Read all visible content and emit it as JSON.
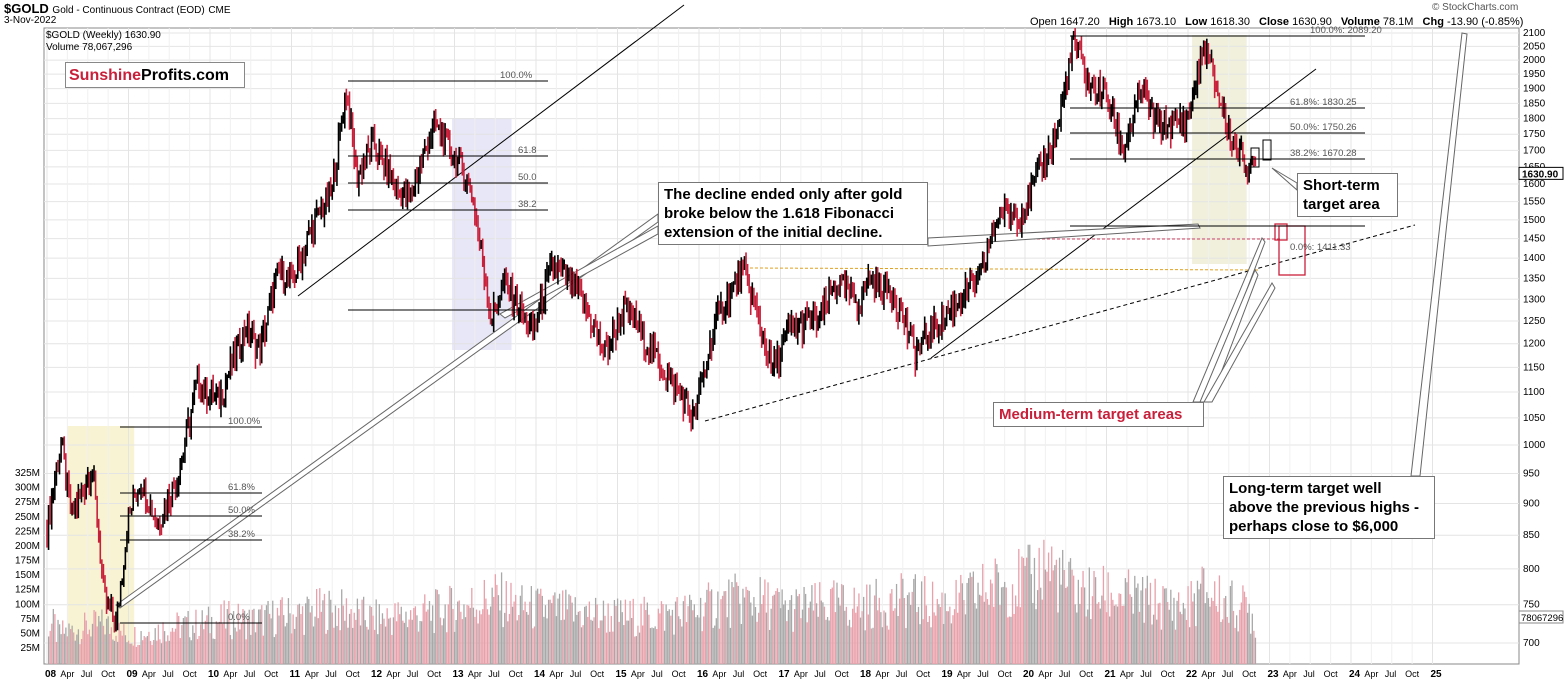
{
  "header": {
    "symbol": "$GOLD",
    "description": "Gold - Continuous Contract (EOD)",
    "exchange": "CME",
    "date": "3-Nov-2022",
    "open_label": "Open",
    "open": "1647.20",
    "high_label": "High",
    "high": "1673.10",
    "low_label": "Low",
    "low": "1618.30",
    "close_label": "Close",
    "close": "1630.90",
    "volume_label": "Volume",
    "volume": "78.1M",
    "chg_label": "Chg",
    "chg": "-13.90 (-0.85%)",
    "copyright": "© StockCharts.com"
  },
  "legend": {
    "price": "$GOLD (Weekly) 1630.90",
    "volume": "Volume 78,067,296"
  },
  "brand": {
    "part1": "Sunshine",
    "part2": "Profits.com"
  },
  "notes": {
    "decline": "The decline ended only after gold broke below the 1.618 Fibonacci extension of the initial decline.",
    "short_term": "Short-term target area",
    "medium_term": "Medium-term target areas",
    "long_term": "Long-term target well above the previous highs - perhaps close to $6,000"
  },
  "chart_data": {
    "type": "line",
    "title": "$GOLD (Weekly)",
    "xlabel": "",
    "ylabel": "",
    "yscale": "log",
    "ylim": [
      680,
      2110
    ],
    "price_ticks": [
      700,
      750,
      800,
      850,
      900,
      950,
      1000,
      1050,
      1100,
      1150,
      1200,
      1250,
      1300,
      1350,
      1400,
      1450,
      1500,
      1550,
      1600,
      1650,
      1700,
      1750,
      1800,
      1850,
      1900,
      1950,
      2000,
      2050,
      2100
    ],
    "volume_ticks": [
      "25M",
      "50M",
      "75M",
      "100M",
      "125M",
      "150M",
      "175M",
      "200M",
      "225M",
      "250M",
      "275M",
      "300M",
      "325M"
    ],
    "volume_ticks_values": [
      25,
      50,
      75,
      100,
      125,
      150,
      175,
      200,
      225,
      250,
      275,
      300,
      325
    ],
    "year_labels": [
      "08",
      "09",
      "10",
      "11",
      "12",
      "13",
      "14",
      "15",
      "16",
      "17",
      "18",
      "19",
      "20",
      "21",
      "22",
      "23",
      "24",
      "25"
    ],
    "month_labels": [
      "Apr",
      "Jul",
      "Oct"
    ],
    "last_price_label": "1630.90",
    "last_volume_label": "78067296",
    "price_series": [
      {
        "t": 2008.0,
        "v": 860
      },
      {
        "t": 2008.17,
        "v": 1000
      },
      {
        "t": 2008.3,
        "v": 880
      },
      {
        "t": 2008.55,
        "v": 960
      },
      {
        "t": 2008.7,
        "v": 760
      },
      {
        "t": 2008.85,
        "v": 720
      },
      {
        "t": 2009.0,
        "v": 880
      },
      {
        "t": 2009.15,
        "v": 940
      },
      {
        "t": 2009.35,
        "v": 870
      },
      {
        "t": 2009.6,
        "v": 940
      },
      {
        "t": 2009.85,
        "v": 1120
      },
      {
        "t": 2010.1,
        "v": 1080
      },
      {
        "t": 2010.45,
        "v": 1240
      },
      {
        "t": 2010.6,
        "v": 1180
      },
      {
        "t": 2010.85,
        "v": 1370
      },
      {
        "t": 2011.0,
        "v": 1340
      },
      {
        "t": 2011.3,
        "v": 1500
      },
      {
        "t": 2011.5,
        "v": 1580
      },
      {
        "t": 2011.67,
        "v": 1900
      },
      {
        "t": 2011.8,
        "v": 1620
      },
      {
        "t": 2012.0,
        "v": 1720
      },
      {
        "t": 2012.3,
        "v": 1580
      },
      {
        "t": 2012.45,
        "v": 1560
      },
      {
        "t": 2012.75,
        "v": 1780
      },
      {
        "t": 2013.0,
        "v": 1680
      },
      {
        "t": 2013.2,
        "v": 1590
      },
      {
        "t": 2013.45,
        "v": 1250
      },
      {
        "t": 2013.6,
        "v": 1340
      },
      {
        "t": 2013.8,
        "v": 1280
      },
      {
        "t": 2013.95,
        "v": 1220
      },
      {
        "t": 2014.2,
        "v": 1380
      },
      {
        "t": 2014.5,
        "v": 1320
      },
      {
        "t": 2014.85,
        "v": 1180
      },
      {
        "t": 2015.1,
        "v": 1280
      },
      {
        "t": 2015.4,
        "v": 1190
      },
      {
        "t": 2015.7,
        "v": 1110
      },
      {
        "t": 2015.95,
        "v": 1050
      },
      {
        "t": 2016.2,
        "v": 1250
      },
      {
        "t": 2016.55,
        "v": 1370
      },
      {
        "t": 2016.9,
        "v": 1140
      },
      {
        "t": 2017.1,
        "v": 1230
      },
      {
        "t": 2017.5,
        "v": 1260
      },
      {
        "t": 2017.7,
        "v": 1340
      },
      {
        "t": 2017.95,
        "v": 1290
      },
      {
        "t": 2018.1,
        "v": 1350
      },
      {
        "t": 2018.4,
        "v": 1310
      },
      {
        "t": 2018.65,
        "v": 1180
      },
      {
        "t": 2018.9,
        "v": 1240
      },
      {
        "t": 2019.2,
        "v": 1300
      },
      {
        "t": 2019.45,
        "v": 1350
      },
      {
        "t": 2019.7,
        "v": 1530
      },
      {
        "t": 2019.95,
        "v": 1510
      },
      {
        "t": 2020.2,
        "v": 1650
      },
      {
        "t": 2020.4,
        "v": 1760
      },
      {
        "t": 2020.6,
        "v": 2070
      },
      {
        "t": 2020.8,
        "v": 1900
      },
      {
        "t": 2021.0,
        "v": 1880
      },
      {
        "t": 2021.2,
        "v": 1700
      },
      {
        "t": 2021.45,
        "v": 1900
      },
      {
        "t": 2021.6,
        "v": 1780
      },
      {
        "t": 2021.8,
        "v": 1780
      },
      {
        "t": 2022.0,
        "v": 1800
      },
      {
        "t": 2022.2,
        "v": 2050
      },
      {
        "t": 2022.4,
        "v": 1850
      },
      {
        "t": 2022.55,
        "v": 1720
      },
      {
        "t": 2022.75,
        "v": 1650
      },
      {
        "t": 2022.84,
        "v": 1630.9
      }
    ],
    "volume_bars": [
      {
        "t": 2008.1,
        "v": 60
      },
      {
        "t": 2008.4,
        "v": 70
      },
      {
        "t": 2008.7,
        "v": 80
      },
      {
        "t": 2009.0,
        "v": 55
      },
      {
        "t": 2009.3,
        "v": 65
      },
      {
        "t": 2009.6,
        "v": 75
      },
      {
        "t": 2009.9,
        "v": 80
      },
      {
        "t": 2010.2,
        "v": 90
      },
      {
        "t": 2010.5,
        "v": 85
      },
      {
        "t": 2010.8,
        "v": 95
      },
      {
        "t": 2011.1,
        "v": 100
      },
      {
        "t": 2011.4,
        "v": 110
      },
      {
        "t": 2011.7,
        "v": 105
      },
      {
        "t": 2012.0,
        "v": 90
      },
      {
        "t": 2012.3,
        "v": 95
      },
      {
        "t": 2012.6,
        "v": 100
      },
      {
        "t": 2012.9,
        "v": 110
      },
      {
        "t": 2013.2,
        "v": 120
      },
      {
        "t": 2013.5,
        "v": 135
      },
      {
        "t": 2013.8,
        "v": 115
      },
      {
        "t": 2014.1,
        "v": 110
      },
      {
        "t": 2014.4,
        "v": 105
      },
      {
        "t": 2014.7,
        "v": 100
      },
      {
        "t": 2015.0,
        "v": 95
      },
      {
        "t": 2015.3,
        "v": 95
      },
      {
        "t": 2015.6,
        "v": 100
      },
      {
        "t": 2015.9,
        "v": 105
      },
      {
        "t": 2016.2,
        "v": 120
      },
      {
        "t": 2016.5,
        "v": 130
      },
      {
        "t": 2016.8,
        "v": 125
      },
      {
        "t": 2017.1,
        "v": 110
      },
      {
        "t": 2017.4,
        "v": 115
      },
      {
        "t": 2017.7,
        "v": 120
      },
      {
        "t": 2018.0,
        "v": 115
      },
      {
        "t": 2018.3,
        "v": 125
      },
      {
        "t": 2018.6,
        "v": 130
      },
      {
        "t": 2018.9,
        "v": 120
      },
      {
        "t": 2019.2,
        "v": 125
      },
      {
        "t": 2019.5,
        "v": 150
      },
      {
        "t": 2019.8,
        "v": 165
      },
      {
        "t": 2020.1,
        "v": 170
      },
      {
        "t": 2020.25,
        "v": 210
      },
      {
        "t": 2020.5,
        "v": 160
      },
      {
        "t": 2020.8,
        "v": 140
      },
      {
        "t": 2021.1,
        "v": 140
      },
      {
        "t": 2021.4,
        "v": 130
      },
      {
        "t": 2021.7,
        "v": 120
      },
      {
        "t": 2022.0,
        "v": 115
      },
      {
        "t": 2022.2,
        "v": 150
      },
      {
        "t": 2022.5,
        "v": 120
      },
      {
        "t": 2022.75,
        "v": 110
      },
      {
        "t": 2022.84,
        "v": 78
      }
    ],
    "fib_labels": [
      {
        "label": "100.0%",
        "group": "2011"
      },
      {
        "label": "61.8",
        "group": "2011"
      },
      {
        "label": "50.0",
        "group": "2011"
      },
      {
        "label": "38.2",
        "group": "2011"
      },
      {
        "label": "100.0%",
        "group": "2008"
      },
      {
        "label": "61.8%",
        "group": "2008"
      },
      {
        "label": "50.0%",
        "group": "2008"
      },
      {
        "label": "38.2%",
        "group": "2008"
      },
      {
        "label": "0.0%",
        "group": "2008"
      },
      {
        "label": "100.0%: 2089.20",
        "group": "2020"
      },
      {
        "label": "61.8%: 1830.25",
        "group": "2020"
      },
      {
        "label": "50.0%: 1750.26",
        "group": "2020"
      },
      {
        "label": "38.2%: 1670.28",
        "group": "2020"
      },
      {
        "label": "0.0%: 1411.33",
        "group": "2020"
      }
    ],
    "colors": {
      "up": "#000000",
      "down": "#c8203a",
      "vol_up": "#a8a8a8",
      "vol_down": "#e8a0aa",
      "grid": "#e4e4e4",
      "note_red": "#c8203a"
    }
  }
}
